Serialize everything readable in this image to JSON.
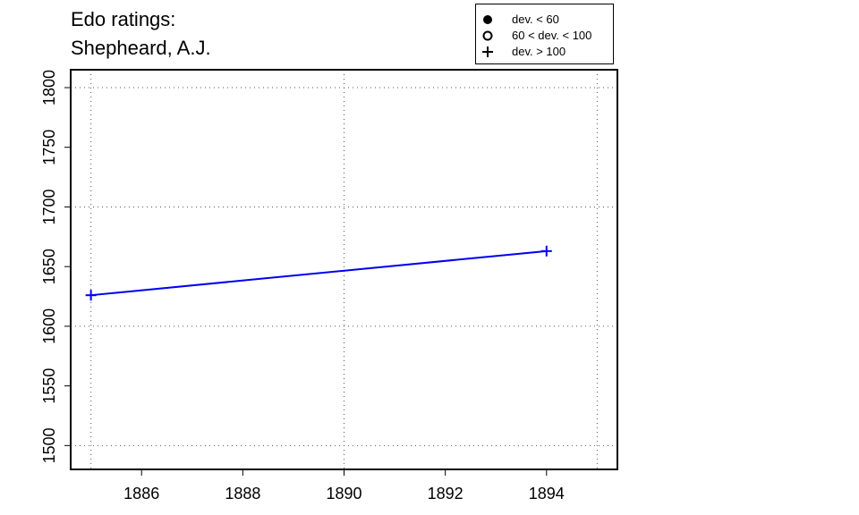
{
  "chart_data": {
    "type": "line",
    "title_lines": [
      "Edo ratings:",
      "Shepheard, A.J."
    ],
    "xlabel": "",
    "ylabel": "",
    "xlim": [
      1884.6,
      1895.4
    ],
    "ylim": [
      1480,
      1815
    ],
    "x_ticks": [
      1886,
      1888,
      1890,
      1892,
      1894
    ],
    "x_grid": [
      1885,
      1890,
      1895
    ],
    "y_ticks": [
      1500,
      1550,
      1600,
      1650,
      1700,
      1750,
      1800
    ],
    "y_grid": [
      1500,
      1600,
      1700,
      1800
    ],
    "grid": true,
    "legend_position": "top-right, above plot",
    "legend": [
      {
        "symbol": "filled-circle",
        "label": "dev. < 60"
      },
      {
        "symbol": "open-circle",
        "label": "60 < dev. < 100"
      },
      {
        "symbol": "plus",
        "label": "dev. > 100"
      }
    ],
    "series": [
      {
        "color": "#0000ee",
        "marker": "plus",
        "points": [
          {
            "x": 1885,
            "y": 1626
          },
          {
            "x": 1894,
            "y": 1663
          }
        ]
      }
    ]
  }
}
